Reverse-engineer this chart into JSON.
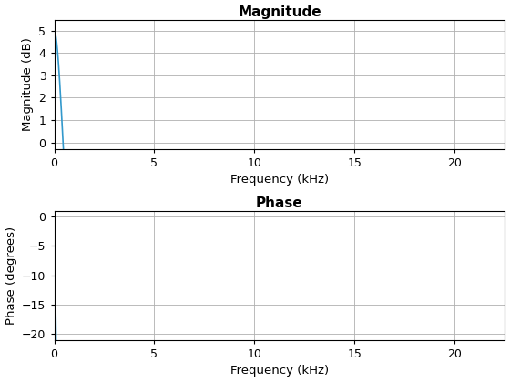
{
  "title_magnitude": "Magnitude",
  "title_phase": "Phase",
  "xlabel": "Frequency (kHz)",
  "ylabel_magnitude": "Magnitude (dB)",
  "ylabel_phase": "Phase (degrees)",
  "line_color": "#3399CC",
  "xlim": [
    0,
    22.5
  ],
  "mag_ylim": [
    -0.3,
    5.5
  ],
  "phase_ylim": [
    -21,
    1
  ],
  "mag_yticks": [
    0,
    1,
    2,
    3,
    4,
    5
  ],
  "phase_yticks": [
    -20,
    -15,
    -10,
    -5,
    0
  ],
  "xticks": [
    0,
    5,
    10,
    15,
    20
  ],
  "background_color": "#ffffff",
  "grid_color": "#b0b0b0",
  "title_fontsize": 11,
  "label_fontsize": 9.5,
  "tick_fontsize": 9,
  "line_width": 1.2
}
